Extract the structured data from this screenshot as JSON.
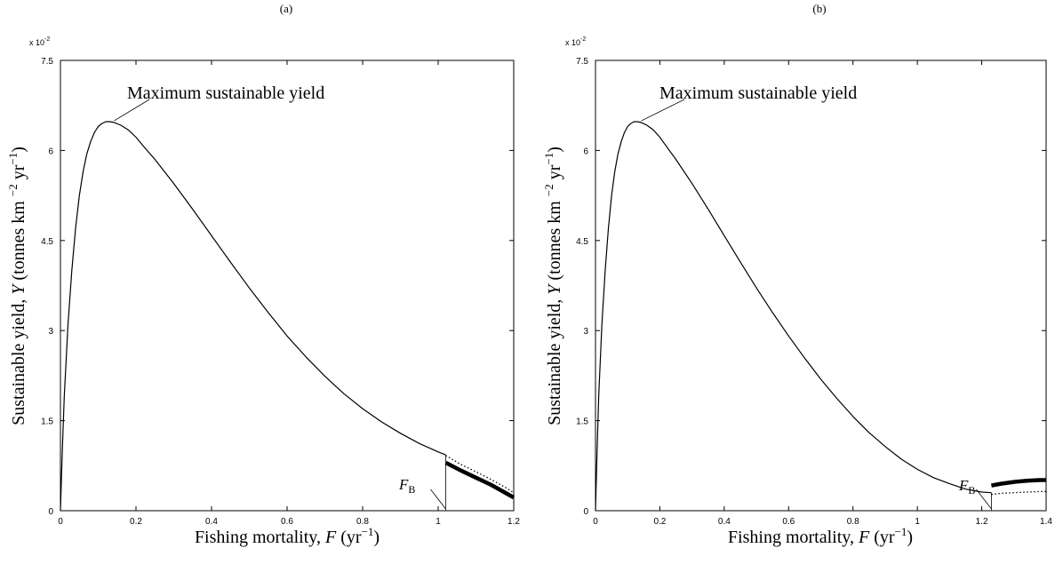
{
  "chart_data": [
    {
      "panel_label": "(a)",
      "type": "line",
      "xlabel_prefix": "Fishing mortality,",
      "xlabel_var": "F",
      "xlabel_unit": "(yr",
      "xlabel_exp": "−1",
      "xlabel_close": ")",
      "ylabel_prefix": "Sustainable yield,",
      "ylabel_var": "Y",
      "ylabel_unit": "(tonnes km",
      "ylabel_exp1": "−2",
      "ylabel_mid": "yr",
      "ylabel_exp2": "−1",
      "ylabel_close": ")",
      "y_scale_base": "x 10",
      "y_scale_exp": "-2",
      "xlim": [
        0,
        1.2
      ],
      "ylim": [
        0,
        7.5
      ],
      "x_ticks": [
        "0",
        "0.2",
        "0.4",
        "0.6",
        "0.8",
        "1",
        "1.2"
      ],
      "y_ticks": [
        "0",
        "1.5",
        "3",
        "4.5",
        "6",
        "7.5"
      ],
      "annotation": "Maximum sustainable yield",
      "annotation_point": [
        0.14,
        6.48
      ],
      "fb_label": "F",
      "fb_sub": "B",
      "fb_x": 1.02,
      "series": [
        {
          "style": "solid",
          "x": [
            0,
            0.005,
            0.01,
            0.02,
            0.03,
            0.04,
            0.05,
            0.06,
            0.07,
            0.08,
            0.09,
            0.1,
            0.11,
            0.12,
            0.13,
            0.14,
            0.16,
            0.18,
            0.2,
            0.22,
            0.25,
            0.3,
            0.35,
            0.4,
            0.45,
            0.5,
            0.55,
            0.6,
            0.65,
            0.7,
            0.75,
            0.8,
            0.85,
            0.9,
            0.95,
            1.0,
            1.02
          ],
          "y": [
            0,
            1.0,
            1.9,
            3.1,
            4.0,
            4.7,
            5.25,
            5.65,
            5.95,
            6.15,
            6.3,
            6.4,
            6.45,
            6.48,
            6.48,
            6.47,
            6.42,
            6.34,
            6.22,
            6.07,
            5.85,
            5.45,
            5.02,
            4.58,
            4.14,
            3.71,
            3.3,
            2.91,
            2.56,
            2.24,
            1.95,
            1.7,
            1.48,
            1.29,
            1.12,
            0.98,
            0.93
          ]
        },
        {
          "style": "dotted",
          "x": [
            1.02,
            1.06,
            1.1,
            1.14,
            1.18,
            1.2
          ],
          "y": [
            0.92,
            0.77,
            0.65,
            0.52,
            0.38,
            0.3
          ]
        },
        {
          "style": "thick",
          "x": [
            1.02,
            1.06,
            1.1,
            1.14,
            1.18,
            1.2
          ],
          "y": [
            0.8,
            0.67,
            0.55,
            0.43,
            0.29,
            0.22
          ]
        }
      ]
    },
    {
      "panel_label": "(b)",
      "type": "line",
      "xlabel_prefix": "Fishing mortality,",
      "xlabel_var": "F",
      "xlabel_unit": "(yr",
      "xlabel_exp": "−1",
      "xlabel_close": ")",
      "ylabel_prefix": "Sustainable yield,",
      "ylabel_var": "Y",
      "ylabel_unit": "(tonnes km",
      "ylabel_exp1": "−2",
      "ylabel_mid": "yr",
      "ylabel_exp2": "−1",
      "ylabel_close": ")",
      "y_scale_base": "x 10",
      "y_scale_exp": "-2",
      "xlim": [
        0,
        1.4
      ],
      "ylim": [
        0,
        7.5
      ],
      "x_ticks": [
        "0",
        "0.2",
        "0.4",
        "0.6",
        "0.8",
        "1",
        "1.2",
        "1.4"
      ],
      "y_ticks": [
        "0",
        "1.5",
        "3",
        "4.5",
        "6",
        "7.5"
      ],
      "annotation": "Maximum sustainable yield",
      "annotation_point": [
        0.14,
        6.48
      ],
      "fb_label": "F",
      "fb_sub": "B",
      "fb_x": 1.23,
      "series": [
        {
          "style": "solid",
          "x": [
            0,
            0.005,
            0.01,
            0.02,
            0.03,
            0.04,
            0.05,
            0.06,
            0.07,
            0.08,
            0.09,
            0.1,
            0.11,
            0.12,
            0.13,
            0.14,
            0.16,
            0.18,
            0.2,
            0.22,
            0.25,
            0.3,
            0.35,
            0.4,
            0.45,
            0.5,
            0.55,
            0.6,
            0.65,
            0.7,
            0.75,
            0.8,
            0.85,
            0.9,
            0.95,
            1.0,
            1.05,
            1.1,
            1.15,
            1.2,
            1.23
          ],
          "y": [
            0,
            1.0,
            1.9,
            3.1,
            4.0,
            4.7,
            5.25,
            5.65,
            5.95,
            6.15,
            6.3,
            6.4,
            6.45,
            6.48,
            6.48,
            6.47,
            6.42,
            6.34,
            6.22,
            6.07,
            5.85,
            5.45,
            5.02,
            4.58,
            4.14,
            3.71,
            3.3,
            2.91,
            2.54,
            2.19,
            1.87,
            1.57,
            1.3,
            1.07,
            0.86,
            0.69,
            0.55,
            0.45,
            0.36,
            0.31,
            0.3
          ]
        },
        {
          "style": "dotted",
          "x": [
            1.23,
            1.26,
            1.3,
            1.34,
            1.38,
            1.4
          ],
          "y": [
            0.27,
            0.29,
            0.3,
            0.31,
            0.32,
            0.32
          ]
        },
        {
          "style": "thick",
          "x": [
            1.23,
            1.26,
            1.3,
            1.34,
            1.38,
            1.4
          ],
          "y": [
            0.42,
            0.45,
            0.48,
            0.5,
            0.51,
            0.51
          ]
        }
      ]
    }
  ]
}
